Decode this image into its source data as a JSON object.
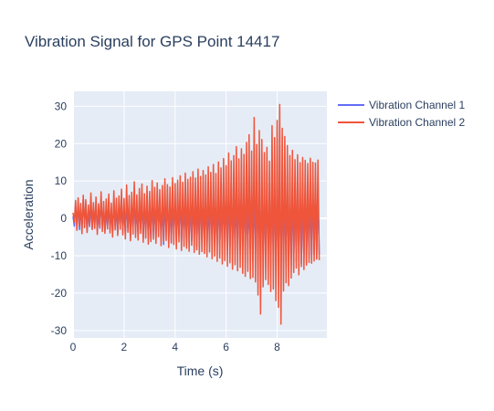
{
  "chart_data": {
    "type": "line",
    "title": "Vibration Signal for GPS Point 14417",
    "xlabel": "Time (s)",
    "ylabel": "Acceleration",
    "xlim": [
      0,
      9.95
    ],
    "ylim": [
      -32,
      34
    ],
    "x_ticks": [
      0,
      2,
      4,
      6,
      8
    ],
    "y_ticks": [
      -30,
      -20,
      -10,
      0,
      10,
      20,
      30
    ],
    "grid": true,
    "legend_position": "top-right",
    "x_step": 0.05,
    "series": [
      {
        "name": "Vibration Channel 1",
        "color": "#636efa",
        "values": [
          0.5,
          -2.1,
          3.4,
          -1.8,
          4.2,
          -3.0,
          2.6,
          -2.5,
          5.1,
          -1.2,
          3.0,
          -3.6,
          1.9,
          -2.2,
          4.0,
          -2.8,
          2.2,
          -1.5,
          3.8,
          -3.2,
          1.4,
          -2.6,
          4.6,
          -1.9,
          2.8,
          -3.4,
          2.0,
          -2.3,
          3.5,
          -2.9,
          1.8,
          -3.8,
          3.9,
          -2.0,
          2.4,
          -4.1,
          3.1,
          -1.6,
          2.7,
          -3.3,
          2.2,
          -4.0,
          3.6,
          -2.4,
          2.9,
          -5.2,
          3.2,
          -2.1,
          4.4,
          -3.7,
          2.6,
          -4.4,
          3.0,
          -2.8,
          4.1,
          -5.6,
          2.5,
          -3.0,
          3.7,
          -4.8,
          2.3,
          -6.0,
          3.9,
          -3.1,
          2.8,
          -5.4,
          4.3,
          -2.6,
          3.4,
          -4.5,
          2.7,
          -7.0,
          3.8,
          -3.5,
          4.6,
          -5.1,
          2.9,
          -6.4,
          3.3,
          -3.2,
          4.2,
          -5.8,
          3.1,
          -4.2,
          4.9,
          -6.6,
          3.5,
          -5.0,
          4.0,
          -7.2,
          3.6,
          -4.6,
          4.4,
          -6.2,
          3.9,
          -5.5,
          5.2,
          -7.5,
          3.7,
          -4.9,
          4.8,
          -6.3,
          4.1,
          -5.3,
          4.3,
          -7.6,
          3.8,
          -5.9,
          5.5,
          -6.0,
          4.0,
          -6.8,
          5.0,
          -5.7,
          4.5,
          -7.1,
          4.2,
          -6.1,
          5.6,
          -6.9,
          4.7,
          -5.6,
          4.9,
          -7.8,
          5.3,
          -6.5,
          5.1,
          -8.1,
          4.6,
          -7.0,
          5.8,
          -6.7,
          5.0,
          -8.3,
          5.4,
          -7.3,
          5.9,
          -7.9,
          4.8,
          -8.6,
          6.0,
          -7.4,
          5.2,
          -8.9,
          6.2,
          -7.7,
          5.5,
          -9.0,
          6.3,
          -8.0,
          5.7,
          -9.3,
          6.6,
          -8.4,
          6.0,
          -10.2,
          6.8,
          -8.7,
          6.4,
          -11.0,
          7.0,
          -9.5,
          6.5,
          -12.4,
          7.3,
          -10.1,
          6.7,
          -13.5,
          7.6,
          -9.8,
          7.0,
          -12.8,
          7.2,
          -10.5,
          6.9,
          -11.6,
          7.4,
          -9.9,
          7.1,
          -12.2,
          7.5,
          -10.7,
          7.3,
          -11.9,
          7.8,
          -10.3,
          7.2,
          -11.1,
          7.7,
          -9.7,
          7.0,
          -10.8,
          7.4,
          -9.6
        ],
        "values_note": ""
      },
      {
        "name": "Vibration Channel 2",
        "color": "#ef553b",
        "values": [
          1.5,
          -1.0,
          4.8,
          -3.2,
          5.5,
          -2.0,
          4.0,
          -4.1,
          6.2,
          -2.5,
          5.0,
          -3.8,
          3.6,
          -1.9,
          6.8,
          -3.0,
          4.2,
          -2.7,
          5.7,
          -4.3,
          3.9,
          -2.2,
          7.1,
          -3.5,
          4.5,
          -4.0,
          5.2,
          -2.8,
          6.5,
          -3.9,
          4.1,
          -5.0,
          7.4,
          -3.1,
          5.4,
          -4.6,
          6.0,
          -2.9,
          7.8,
          -4.4,
          5.3,
          -5.5,
          8.9,
          -3.7,
          6.1,
          -6.0,
          7.0,
          -4.2,
          9.8,
          -5.1,
          6.3,
          -5.8,
          8.0,
          -4.0,
          9.2,
          -6.4,
          6.6,
          -5.3,
          8.6,
          -6.9,
          7.2,
          -6.2,
          10.1,
          -5.6,
          8.3,
          -6.7,
          9.5,
          -4.9,
          7.7,
          -7.3,
          8.8,
          -6.1,
          10.6,
          -5.9,
          9.0,
          -7.8,
          8.4,
          -6.6,
          10.9,
          -7.0,
          9.3,
          -8.2,
          10.2,
          -6.3,
          11.4,
          -8.6,
          9.7,
          -7.5,
          12.1,
          -8.0,
          10.4,
          -8.8,
          11.0,
          -7.2,
          12.5,
          -9.1,
          10.8,
          -8.4,
          13.2,
          -9.6,
          11.2,
          -8.9,
          12.8,
          -9.4,
          11.6,
          -10.3,
          13.8,
          -9.0,
          12.3,
          -10.8,
          14.4,
          -10.1,
          12.0,
          -11.5,
          15.1,
          -10.6,
          13.5,
          -12.2,
          16.0,
          -11.3,
          14.1,
          -12.8,
          17.5,
          -11.9,
          15.4,
          -13.6,
          16.8,
          -12.4,
          19.2,
          -14.0,
          15.9,
          -13.1,
          18.6,
          -14.7,
          17.1,
          -15.5,
          20.3,
          -14.2,
          22.4,
          -16.1,
          18.0,
          -15.8,
          27.0,
          -17.0,
          19.8,
          -20.5,
          23.5,
          -25.6,
          21.1,
          -18.3,
          17.6,
          -16.4,
          19.0,
          -17.7,
          15.3,
          -19.6,
          24.8,
          -18.9,
          21.6,
          -22.0,
          26.2,
          -23.8,
          30.5,
          -28.3,
          24.1,
          -19.4,
          21.9,
          -17.2,
          19.5,
          -18.0,
          16.8,
          -16.0,
          18.2,
          -14.5,
          15.7,
          -13.3,
          17.0,
          -15.1,
          14.9,
          -12.9,
          16.3,
          -13.7,
          15.5,
          -12.5,
          14.7,
          -11.8,
          16.1,
          -12.0,
          15.0,
          -11.4,
          14.8,
          -10.9,
          15.6,
          -11.2
        ]
      }
    ]
  }
}
